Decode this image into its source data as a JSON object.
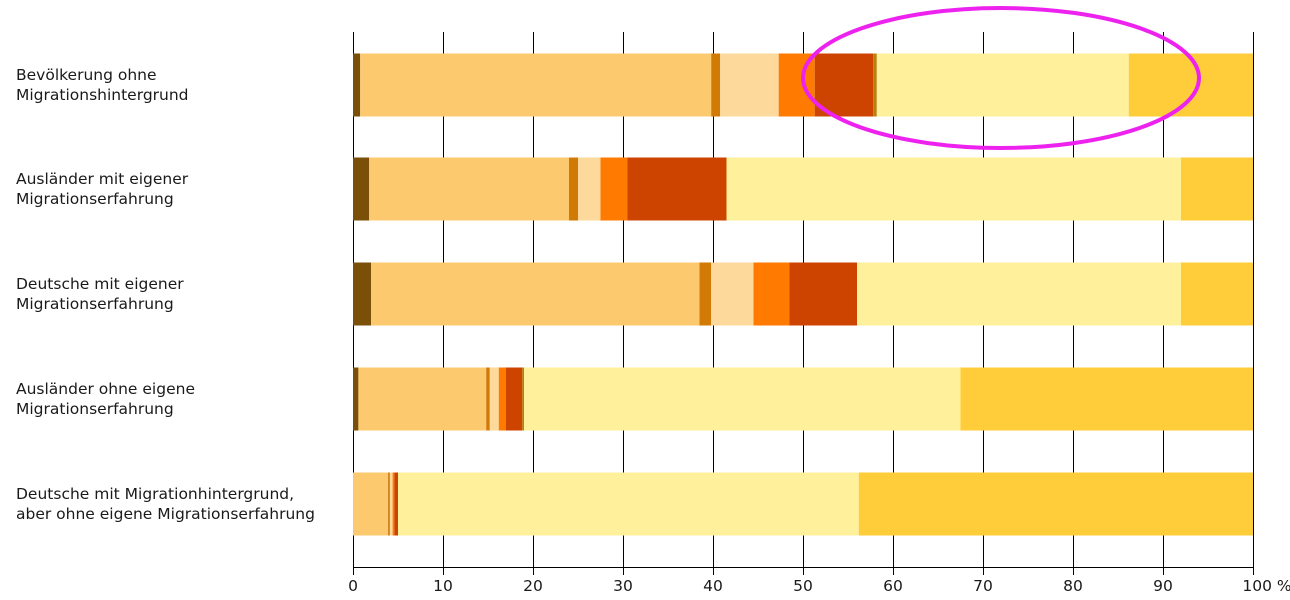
{
  "chart_data": {
    "type": "bar",
    "orientation": "horizontal",
    "stacked": true,
    "categories": [
      [
        "Bevölkerung ohne",
        "Migrationshintergrund"
      ],
      [
        "Ausländer mit eigener",
        "Migrationserfahrung"
      ],
      [
        "Deutsche mit eigener",
        "Migrationserfahrung"
      ],
      [
        "Ausländer ohne eigene",
        "Migrationserfahrung"
      ],
      [
        "Deutsche mit Migrationhintergrund,",
        "aber ohne eigene Migrationserfahrung"
      ]
    ],
    "series": [
      {
        "color": "#7a4f08",
        "values": [
          0.8,
          1.8,
          2.0,
          0.6,
          0.0
        ]
      },
      {
        "color": "#fdc96e",
        "values": [
          39.0,
          22.2,
          36.5,
          14.2,
          3.9
        ]
      },
      {
        "color": "#d17a06",
        "values": [
          1.0,
          1.0,
          1.3,
          0.4,
          0.2
        ]
      },
      {
        "color": "#fdd99b",
        "values": [
          6.5,
          2.5,
          4.7,
          1.0,
          0.3
        ]
      },
      {
        "color": "#ff7a00",
        "values": [
          4.0,
          3.0,
          4.0,
          0.8,
          0.2
        ]
      },
      {
        "color": "#cc4400",
        "values": [
          6.5,
          11.0,
          7.5,
          1.8,
          0.4
        ]
      },
      {
        "color": "#b97f08",
        "values": [
          0.4,
          0.0,
          0.0,
          0.2,
          0.0
        ]
      },
      {
        "color": "#fff09c",
        "values": [
          28.0,
          50.5,
          36.0,
          48.5,
          51.2
        ]
      },
      {
        "color": "#ffcc3a",
        "values": [
          13.8,
          8.0,
          8.0,
          32.5,
          43.8
        ]
      }
    ],
    "xlim": [
      0,
      100
    ],
    "xticks": [
      0,
      10,
      20,
      30,
      40,
      50,
      60,
      70,
      80,
      90,
      100
    ],
    "xtick_labels": [
      "0",
      "10",
      "20",
      "30",
      "40",
      "50",
      "60",
      "70",
      "80",
      "90",
      "100 %"
    ],
    "grid": true,
    "annotation": {
      "shape": "ellipse",
      "color": "#ee22ee",
      "center": [
        72,
        0
      ],
      "radius_x": 22,
      "radius_y": 0.8
    }
  }
}
